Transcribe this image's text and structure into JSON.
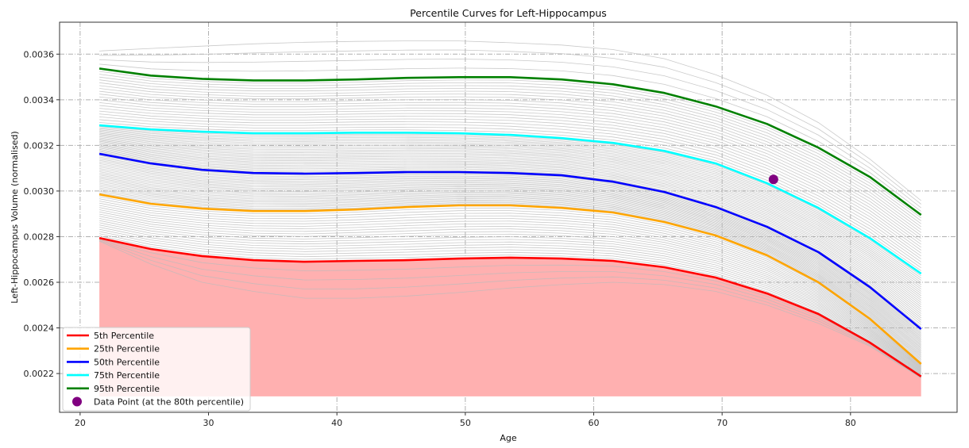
{
  "chart_data": {
    "type": "line",
    "title": "Percentile Curves for Left-Hippocampus",
    "xlabel": "Age",
    "ylabel": "Left-Hippocampus Volume (normalised)",
    "xlim": [
      18.4,
      88.3
    ],
    "ylim": [
      0.00203,
      0.00374
    ],
    "xticks": [
      20,
      30,
      40,
      50,
      60,
      70,
      80
    ],
    "yticks": [
      "0.0022",
      "0.0024",
      "0.0026",
      "0.0028",
      "0.0030",
      "0.0032",
      "0.0034",
      "0.0036"
    ],
    "grid": true,
    "legend_position": "bottom-left",
    "x": [
      21.5,
      25.5,
      29.5,
      33.5,
      37.5,
      41.5,
      45.5,
      49.5,
      53.5,
      57.5,
      61.5,
      65.5,
      69.5,
      73.5,
      77.5,
      81.5,
      85.5
    ],
    "series": [
      {
        "name": "5th Percentile",
        "color": "#ff0000",
        "values": [
          0.002794,
          0.002746,
          0.002715,
          0.002697,
          0.00269,
          0.002694,
          0.002697,
          0.002704,
          0.002708,
          0.002704,
          0.002694,
          0.002666,
          0.002621,
          0.002551,
          0.002461,
          0.002336,
          0.002187
        ]
      },
      {
        "name": "25th Percentile",
        "color": "#ffa500",
        "values": [
          0.002985,
          0.002944,
          0.002923,
          0.002912,
          0.002912,
          0.002919,
          0.00293,
          0.002937,
          0.002937,
          0.002926,
          0.002906,
          0.002864,
          0.002805,
          0.002718,
          0.0026,
          0.00244,
          0.002242
        ]
      },
      {
        "name": "50th Percentile",
        "color": "#0000ff",
        "values": [
          0.003163,
          0.003121,
          0.003093,
          0.003079,
          0.003076,
          0.003079,
          0.003083,
          0.003083,
          0.003079,
          0.003069,
          0.003041,
          0.002996,
          0.00293,
          0.002843,
          0.002732,
          0.002579,
          0.002395
        ]
      },
      {
        "name": "75th Percentile",
        "color": "#00ffff",
        "values": [
          0.003288,
          0.00327,
          0.00326,
          0.003253,
          0.003253,
          0.003256,
          0.003256,
          0.003253,
          0.003246,
          0.003232,
          0.003211,
          0.003176,
          0.003121,
          0.003034,
          0.002926,
          0.002794,
          0.002638
        ]
      },
      {
        "name": "95th Percentile",
        "color": "#008000",
        "values": [
          0.003537,
          0.003506,
          0.003492,
          0.003485,
          0.003485,
          0.003489,
          0.003496,
          0.003499,
          0.003499,
          0.003489,
          0.003468,
          0.00343,
          0.003371,
          0.003294,
          0.00319,
          0.003062,
          0.002895
        ]
      }
    ],
    "background_curves": {
      "color": "#bbbbbb",
      "upper": [
        0.003614,
        0.003625,
        0.003635,
        0.003645,
        0.003652,
        0.003656,
        0.003658,
        0.003658,
        0.00365,
        0.00364,
        0.00362,
        0.00358,
        0.00351,
        0.00342,
        0.0033,
        0.00314,
        0.002958
      ],
      "lower": [
        0.00278,
        0.00268,
        0.0026,
        0.00256,
        0.00253,
        0.00253,
        0.00254,
        0.002555,
        0.002575,
        0.00259,
        0.0026,
        0.00259,
        0.00256,
        0.0025,
        0.00242,
        0.00232,
        0.00218
      ]
    },
    "fill_below_5th": {
      "color": "#ffb0b0",
      "floor": 0.0021
    },
    "data_point": {
      "label": "Data Point (at the 80th percentile)",
      "x": 74,
      "y": 0.003051,
      "color": "#800080"
    }
  }
}
